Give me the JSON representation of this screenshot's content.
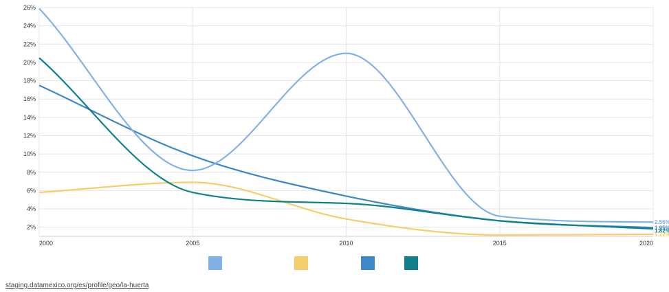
{
  "chart_data": {
    "type": "line",
    "x": [
      2000,
      2005,
      2010,
      2015,
      2020
    ],
    "ylim": [
      1,
      26
    ],
    "y_ticks": [
      2,
      4,
      6,
      8,
      10,
      12,
      14,
      16,
      18,
      20,
      22,
      24,
      26
    ],
    "y_tick_labels": [
      "2%",
      "4%",
      "6%",
      "8%",
      "10%",
      "12%",
      "14%",
      "16%",
      "18%",
      "20%",
      "22%",
      "24%",
      "26%"
    ],
    "x_tick_labels": [
      "2000",
      "2005",
      "2010",
      "2015",
      "2020"
    ],
    "grid": true,
    "legend_position": "bottom",
    "series": [
      {
        "color": "#82b1e8",
        "values": [
          25.9,
          8.2,
          21.0,
          3.2,
          2.56
        ],
        "end_label": "2.56%"
      },
      {
        "color": "#f5cf6c",
        "values": [
          5.8,
          6.9,
          2.9,
          1.15,
          1.22
        ],
        "end_label": "1.22%"
      },
      {
        "color": "#3e87c8",
        "values": [
          17.5,
          9.8,
          5.4,
          2.7,
          1.95
        ],
        "end_label": "1.95%"
      },
      {
        "color": "#10818a",
        "values": [
          20.5,
          5.8,
          4.6,
          2.7,
          1.82
        ],
        "end_label": "1.82%"
      }
    ]
  },
  "source": {
    "link": "staging.datamexico.org/es/profile/geo/la-huerta"
  }
}
